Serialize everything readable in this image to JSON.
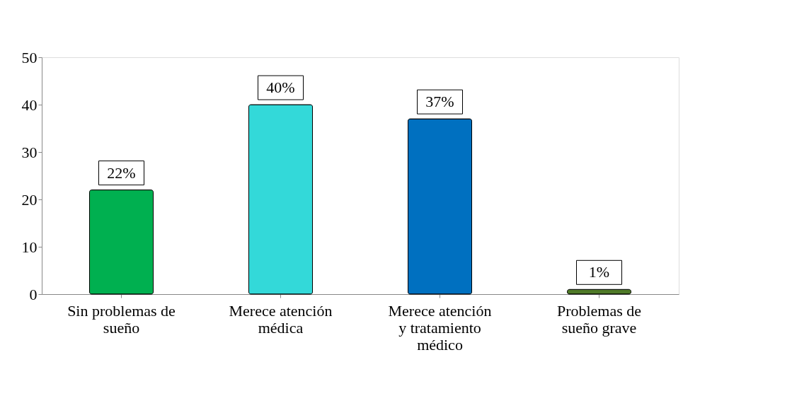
{
  "chart_data": {
    "type": "bar",
    "categories": [
      "Sin problemas de sueño",
      "Merece atención médica",
      "Merece atención y tratamiento médico",
      "Problemas de sueño grave"
    ],
    "values": [
      22,
      40,
      37,
      1
    ],
    "colors": [
      "#00b050",
      "#33d9d9",
      "#0070c0",
      "#4f7a28"
    ],
    "value_labels": [
      "22%",
      "40%",
      "37%",
      "1%"
    ],
    "ylim": [
      0,
      50
    ],
    "yticks": [
      0,
      10,
      20,
      30,
      40,
      50
    ],
    "grid": false
  }
}
